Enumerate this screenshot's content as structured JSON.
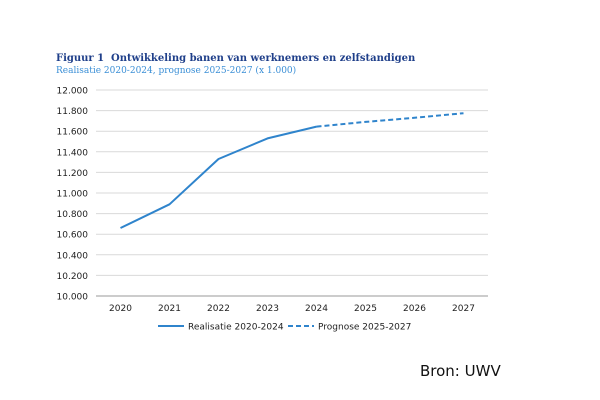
{
  "figure": {
    "label": "Figuur 1",
    "title": "Ontwikkeling banen van werknemers en zelfstandigen",
    "subtitle": "Realisatie 2020-2024, prognose 2025-2027 (x 1.000)"
  },
  "source": "Bron: UWV",
  "colors": {
    "series": "#2f84cc",
    "grid": "#d9d9d9",
    "axis_text": "#222222"
  },
  "chart_data": {
    "type": "line",
    "categories": [
      "2020",
      "2021",
      "2022",
      "2023",
      "2024",
      "2025",
      "2026",
      "2027"
    ],
    "ylim": [
      10000,
      12000
    ],
    "yticks": [
      "10.000",
      "10.200",
      "10.400",
      "10.600",
      "10.800",
      "11.000",
      "11.200",
      "11.400",
      "11.600",
      "11.800",
      "12.000"
    ],
    "grid": true,
    "legend_position": "bottom",
    "series": [
      {
        "name": "Realisatie 2020-2024",
        "style": "solid",
        "x": [
          "2020",
          "2021",
          "2022",
          "2023",
          "2024"
        ],
        "values": [
          10660,
          10890,
          11330,
          11530,
          11645
        ]
      },
      {
        "name": "Prognose 2025-2027",
        "style": "dashed",
        "x": [
          "2024",
          "2025",
          "2026",
          "2027"
        ],
        "values": [
          11645,
          11690,
          11730,
          11775
        ]
      }
    ]
  }
}
